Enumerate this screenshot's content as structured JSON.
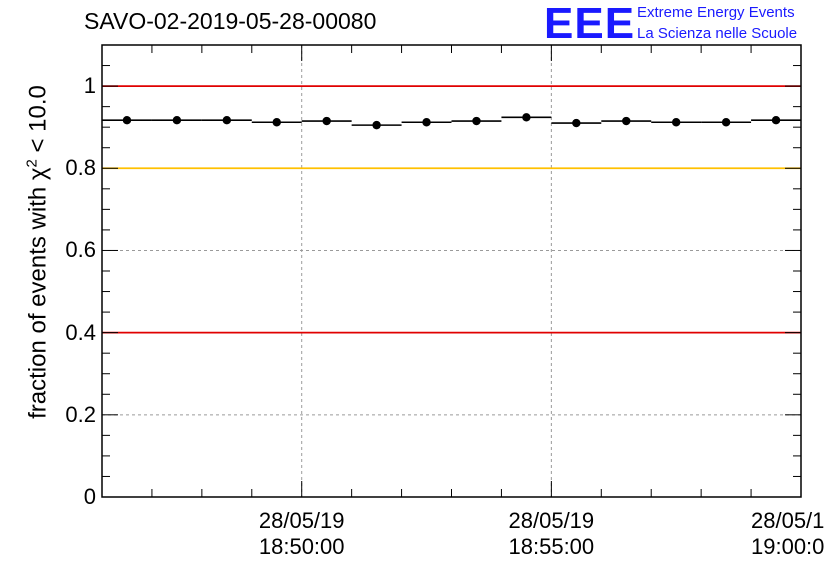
{
  "header": {
    "run_title": "SAVO-02-2019-05-28-00080"
  },
  "logo": {
    "mark": "EEE",
    "line1": "Extreme Energy Events",
    "line2": "La Scienza nelle Scuole",
    "color": "#1a1aff"
  },
  "chart_data": {
    "type": "scatter",
    "title": "SAVO-02-2019-05-28-00080",
    "xlabel": "",
    "ylabel_prefix": "fraction of events with ",
    "ylabel_symbol": "χ",
    "ylabel_exp": "2",
    "ylabel_suffix": " < 10.0",
    "ylim": [
      0,
      1.1
    ],
    "xlim_min": [
      0,
      14
    ],
    "yticks": [
      {
        "value": 0,
        "label": "0"
      },
      {
        "value": 0.2,
        "label": "0.2"
      },
      {
        "value": 0.4,
        "label": "0.4"
      },
      {
        "value": 0.6,
        "label": "0.6"
      },
      {
        "value": 0.8,
        "label": "0.8"
      },
      {
        "value": 1.0,
        "label": "1"
      }
    ],
    "xticks": [
      {
        "value": 4,
        "date": "28/05/19",
        "time": "18:50:00"
      },
      {
        "value": 9,
        "date": "28/05/19",
        "time": "18:55:00"
      },
      {
        "value": 14,
        "date": "28/05/1",
        "time": "19:00:0"
      }
    ],
    "reference_lines": [
      {
        "value": 1.0,
        "color": "#e00000"
      },
      {
        "value": 0.8,
        "color": "#ffc000"
      },
      {
        "value": 0.4,
        "color": "#e00000"
      }
    ],
    "series": [
      {
        "name": "fraction",
        "bin_width_min": 1,
        "x": [
          0.5,
          1.5,
          2.5,
          3.5,
          4.5,
          5.5,
          6.5,
          7.5,
          8.5,
          9.5,
          10.5,
          11.5,
          12.5,
          13.5
        ],
        "values": [
          0.917,
          0.917,
          0.917,
          0.912,
          0.915,
          0.905,
          0.912,
          0.915,
          0.924,
          0.91,
          0.915,
          0.912,
          0.912,
          0.917
        ]
      }
    ]
  }
}
